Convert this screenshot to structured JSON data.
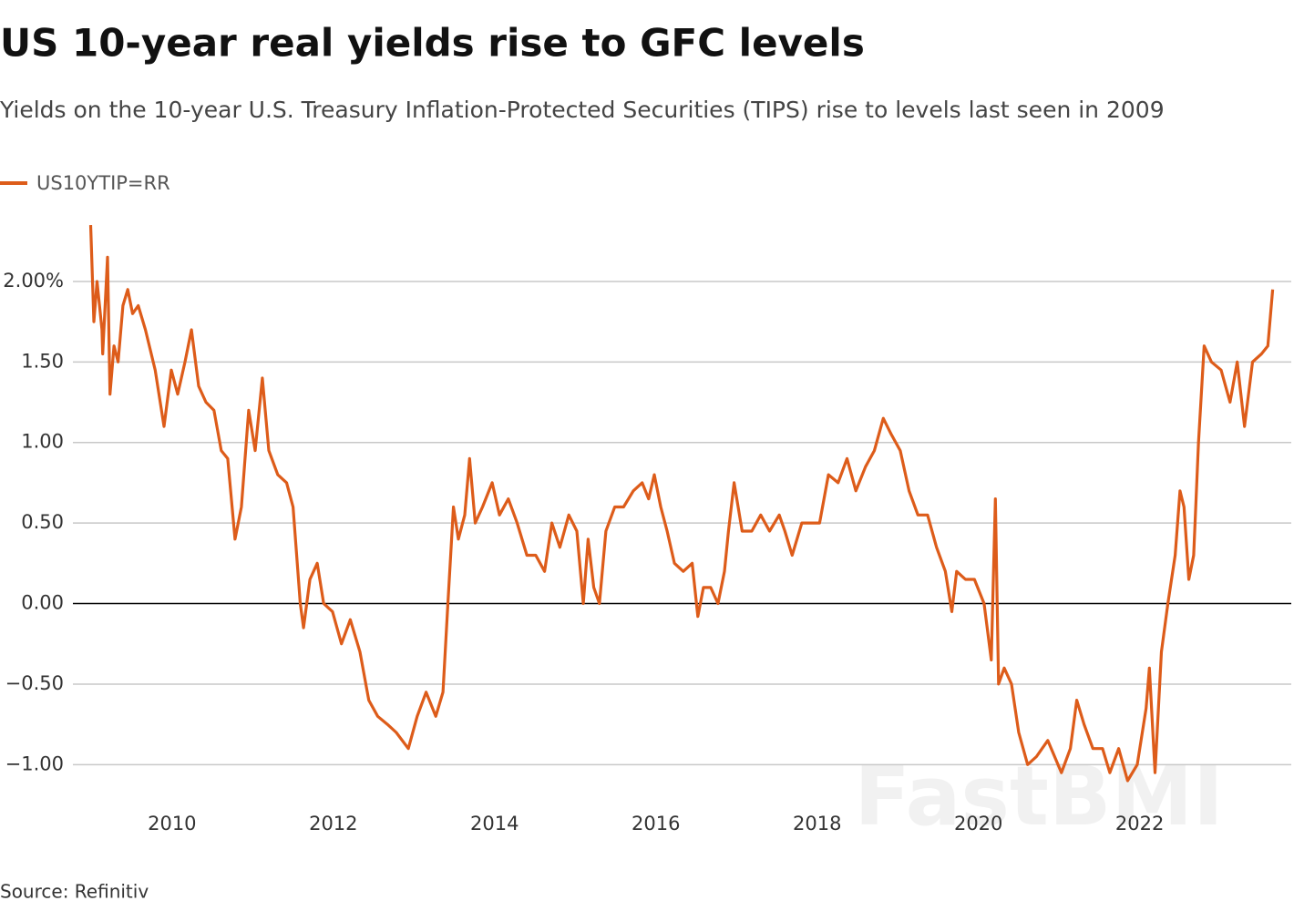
{
  "chart_data": {
    "type": "line",
    "title": "US 10-year real yields rise to GFC levels",
    "subtitle": "Yields on the 10-year U.S. Treasury Inflation-Protected Securities (TIPS) rise to levels last seen in 2009",
    "source": "Source: Refinitiv",
    "watermark": "FastBMI",
    "x": [
      2008.99,
      2009.03,
      2009.07,
      2009.13,
      2009.14,
      2009.2,
      2009.23,
      2009.28,
      2009.33,
      2009.39,
      2009.45,
      2009.51,
      2009.58,
      2009.67,
      2009.79,
      2009.9,
      2009.99,
      2010.07,
      2010.16,
      2010.24,
      2010.33,
      2010.42,
      2010.52,
      2010.61,
      2010.69,
      2010.78,
      2010.86,
      2010.95,
      2011.03,
      2011.12,
      2011.2,
      2011.31,
      2011.42,
      2011.5,
      2011.59,
      2011.63,
      2011.71,
      2011.8,
      2011.88,
      2011.99,
      2012.1,
      2012.21,
      2012.33,
      2012.44,
      2012.55,
      2012.67,
      2012.78,
      2012.93,
      2013.04,
      2013.15,
      2013.27,
      2013.36,
      2013.42,
      2013.49,
      2013.55,
      2013.63,
      2013.69,
      2013.76,
      2013.85,
      2013.97,
      2014.06,
      2014.17,
      2014.28,
      2014.4,
      2014.51,
      2014.62,
      2014.71,
      2014.81,
      2014.92,
      2015.02,
      2015.1,
      2015.16,
      2015.23,
      2015.3,
      2015.38,
      2015.49,
      2015.6,
      2015.72,
      2015.83,
      2015.91,
      2015.98,
      2016.06,
      2016.14,
      2016.23,
      2016.34,
      2016.45,
      2016.52,
      2016.59,
      2016.68,
      2016.77,
      2016.85,
      2016.9,
      2016.97,
      2017.07,
      2017.19,
      2017.3,
      2017.41,
      2017.53,
      2017.6,
      2017.69,
      2017.81,
      2017.92,
      2018.03,
      2018.14,
      2018.26,
      2018.37,
      2018.48,
      2018.6,
      2018.71,
      2018.82,
      2018.92,
      2019.03,
      2019.14,
      2019.25,
      2019.37,
      2019.48,
      2019.59,
      2019.67,
      2019.73,
      2019.84,
      2019.95,
      2020.07,
      2020.16,
      2020.21,
      2020.25,
      2020.32,
      2020.41,
      2020.5,
      2020.61,
      2020.72,
      2020.86,
      2021.03,
      2021.14,
      2021.22,
      2021.31,
      2021.42,
      2021.54,
      2021.63,
      2021.74,
      2021.85,
      2021.97,
      2022.08,
      2022.12,
      2022.19,
      2022.27,
      2022.35,
      2022.44,
      2022.5,
      2022.55,
      2022.61,
      2022.67,
      2022.73,
      2022.8,
      2022.89,
      2023.01,
      2023.12,
      2023.21,
      2023.3,
      2023.4,
      2023.51,
      2023.59,
      2023.65
    ],
    "series": [
      {
        "name": "US10YTIP=RR",
        "color": "#dd5c1a",
        "values": [
          2.35,
          1.75,
          2.0,
          1.7,
          1.55,
          2.15,
          1.3,
          1.6,
          1.5,
          1.85,
          1.95,
          1.8,
          1.85,
          1.7,
          1.45,
          1.1,
          1.45,
          1.3,
          1.5,
          1.7,
          1.35,
          1.25,
          1.2,
          0.95,
          0.9,
          0.4,
          0.6,
          1.2,
          0.95,
          1.4,
          0.95,
          0.8,
          0.75,
          0.6,
          0.0,
          -0.15,
          0.15,
          0.25,
          0.0,
          -0.05,
          -0.25,
          -0.1,
          -0.3,
          -0.6,
          -0.7,
          -0.75,
          -0.8,
          -0.9,
          -0.7,
          -0.55,
          -0.7,
          -0.55,
          0.0,
          0.6,
          0.4,
          0.55,
          0.9,
          0.5,
          0.6,
          0.75,
          0.55,
          0.65,
          0.5,
          0.3,
          0.3,
          0.2,
          0.5,
          0.35,
          0.55,
          0.45,
          0.0,
          0.4,
          0.1,
          0.0,
          0.45,
          0.6,
          0.6,
          0.7,
          0.75,
          0.65,
          0.8,
          0.6,
          0.45,
          0.25,
          0.2,
          0.25,
          -0.08,
          0.1,
          0.1,
          0.0,
          0.2,
          0.45,
          0.75,
          0.45,
          0.45,
          0.55,
          0.45,
          0.55,
          0.45,
          0.3,
          0.5,
          0.5,
          0.5,
          0.8,
          0.75,
          0.9,
          0.7,
          0.85,
          0.95,
          1.15,
          1.05,
          0.95,
          0.7,
          0.55,
          0.55,
          0.35,
          0.2,
          -0.05,
          0.2,
          0.15,
          0.15,
          0.0,
          -0.35,
          0.65,
          -0.5,
          -0.4,
          -0.5,
          -0.8,
          -1.0,
          -0.95,
          -0.85,
          -1.05,
          -0.9,
          -0.6,
          -0.75,
          -0.9,
          -0.9,
          -1.05,
          -0.9,
          -1.1,
          -1.0,
          -0.65,
          -0.4,
          -1.05,
          -0.3,
          0.0,
          0.3,
          0.7,
          0.6,
          0.15,
          0.3,
          1.0,
          1.6,
          1.5,
          1.45,
          1.25,
          1.5,
          1.1,
          1.5,
          1.55,
          1.6,
          1.95
        ]
      }
    ],
    "xlim": [
      2008.77,
      2023.88
    ],
    "xticks": [
      2010,
      2012,
      2014,
      2016,
      2018,
      2020,
      2022
    ],
    "ylim": [
      -1.23,
      2.39
    ],
    "yticks": [
      {
        "value": 2,
        "label": "2.00%"
      },
      {
        "value": 1.5,
        "label": "1.50"
      },
      {
        "value": 1,
        "label": "1.00"
      },
      {
        "value": 0.5,
        "label": "0.50"
      },
      {
        "value": 0,
        "label": "0.00"
      },
      {
        "value": -0.5,
        "label": "−0.50"
      },
      {
        "value": -1,
        "label": "−1.00"
      }
    ],
    "grid": true
  }
}
